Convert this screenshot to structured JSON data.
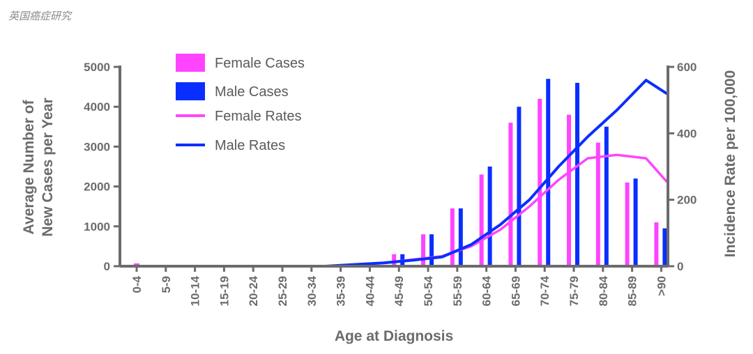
{
  "watermark": "英国癌症研究",
  "colors": {
    "female": "#ff44ff",
    "male": "#0a2eff",
    "axis": "#6b6b6b"
  },
  "chart_data": {
    "type": "bar",
    "xlabel": "Age at Diagnosis",
    "ylabel_left": [
      "Average Number of",
      "New Cases per Year"
    ],
    "ylabel_right": "Incidence Rate per 100,000",
    "ylim_left": [
      0,
      5000
    ],
    "ylim_right": [
      0,
      600
    ],
    "yticks_left": [
      "0",
      "1000",
      "2000",
      "3000",
      "4000",
      "5000"
    ],
    "yticks_right": [
      "0",
      "200",
      "400",
      "600"
    ],
    "grid": false,
    "legend_position": "top-left",
    "categories": [
      "0-4",
      "5-9",
      "10-14",
      "15-19",
      "20-24",
      "25-29",
      "30-34",
      "35-39",
      "40-44",
      "45-49",
      "50-54",
      "55-59",
      "60-64",
      "65-69",
      "70-74",
      "75-79",
      "80-84",
      "85-89",
      ">90"
    ],
    "legend": [
      "Female Cases",
      "Male Cases",
      "Female Rates",
      "Male Rates"
    ],
    "bar_series": [
      {
        "name": "Female Cases",
        "values": [
          0,
          0,
          0,
          0,
          0,
          0,
          0,
          0,
          0,
          300,
          800,
          1450,
          2300,
          3600,
          4200,
          3800,
          3100,
          2100,
          1100
        ]
      },
      {
        "name": "Male Cases",
        "values": [
          0,
          0,
          0,
          0,
          0,
          0,
          0,
          0,
          0,
          300,
          800,
          1450,
          2500,
          4000,
          4700,
          4600,
          3500,
          2200,
          950
        ]
      }
    ],
    "line_series": [
      {
        "name": "Female Rates",
        "x": [
          0,
          1,
          2,
          3,
          4,
          5,
          6,
          7,
          8,
          9,
          10,
          11,
          12,
          13,
          14,
          15,
          16,
          17,
          18
        ],
        "values": [
          0,
          0,
          0,
          0,
          0,
          0,
          0,
          5,
          10,
          20,
          30,
          60,
          110,
          180,
          260,
          325,
          335,
          325,
          255
        ]
      },
      {
        "name": "Male Rates",
        "x": [
          0,
          1,
          2,
          3,
          4,
          5,
          6,
          7,
          8,
          9,
          10,
          11,
          12,
          13,
          14,
          15,
          16,
          17,
          18
        ],
        "values": [
          0,
          0,
          0,
          0,
          0,
          0,
          0,
          5,
          10,
          18,
          28,
          65,
          125,
          200,
          300,
          390,
          470,
          560,
          520
        ]
      }
    ]
  }
}
